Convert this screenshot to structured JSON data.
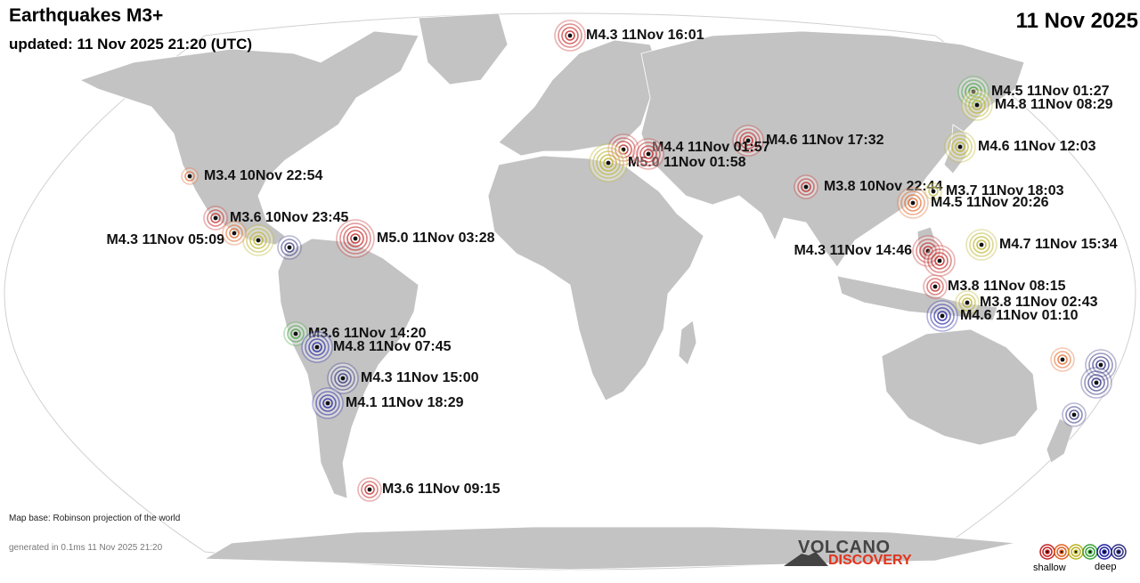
{
  "header": {
    "title": "Earthquakes M3+",
    "updated": "updated: 11 Nov 2025 21:20 (UTC)",
    "date": "11 Nov 2025"
  },
  "footer": {
    "map_base": "Map base: Robinson projection of the world",
    "generated": "generated in 0.1ms 11 Nov 2025 21:20"
  },
  "logo": {
    "top": "VOLCANO",
    "bottom": "DISCOVERY"
  },
  "legend": {
    "shallow": "shallow",
    "deep": "deep",
    "depth_colors": [
      "#c22020",
      "#e06020",
      "#b8b020",
      "#38a038",
      "#2020a0",
      "#303080"
    ]
  },
  "colors": {
    "ocean": "#ffffff",
    "land": "#c3c3c3",
    "border": "#ffffff"
  },
  "quakes": [
    {
      "label": "M4.3 11Nov 16:01",
      "color": "#c22020",
      "size": "large"
    },
    {
      "label": "M4.5 11Nov 01:27",
      "color": "#38a038",
      "size": "large"
    },
    {
      "label": "M4.8 11Nov 08:29",
      "color": "#b8b020",
      "size": "large"
    },
    {
      "label": "M4.6 11Nov 17:32",
      "color": "#c22020",
      "size": "large"
    },
    {
      "label": "M4.6 11Nov 12:03",
      "color": "#b8b020",
      "size": "large"
    },
    {
      "label": "M4.4 11Nov 01:57",
      "color": "#c22020",
      "size": "large"
    },
    {
      "label": "M5.0 11Nov 01:58",
      "color": "#b8b020",
      "size": "xlarge"
    },
    {
      "label": "M3.8 10Nov 22:44",
      "color": "#c22020",
      "size": "medium"
    },
    {
      "label": "M3.7 11Nov 18:03",
      "color": "#b8b020",
      "size": "small"
    },
    {
      "label": "M4.5 11Nov 20:26",
      "color": "#e06020",
      "size": "large"
    },
    {
      "label": "M3.4 10Nov 22:54",
      "color": "#e06020",
      "size": "small"
    },
    {
      "label": "M3.6 10Nov 23:45",
      "color": "#c22020",
      "size": "medium"
    },
    {
      "label": "M4.3 11Nov 05:09",
      "color": "#b8b020",
      "size": "large"
    },
    {
      "label": "M5.0 11Nov 03:28",
      "color": "#c22020",
      "size": "xlarge"
    },
    {
      "label": "M4.7 11Nov 15:34",
      "color": "#b8b020",
      "size": "large"
    },
    {
      "label": "M4.3 11Nov 14:46",
      "color": "#c22020",
      "size": "large"
    },
    {
      "label": "M3.8 11Nov 08:15",
      "color": "#c22020",
      "size": "medium"
    },
    {
      "label": "M3.8 11Nov 02:43",
      "color": "#b8b020",
      "size": "medium"
    },
    {
      "label": "M4.6 11Nov 01:10",
      "color": "#2020a0",
      "size": "large"
    },
    {
      "label": "M3.6 11Nov 14:20",
      "color": "#38a038",
      "size": "medium"
    },
    {
      "label": "M4.8 11Nov 07:45",
      "color": "#2020a0",
      "size": "large"
    },
    {
      "label": "M4.3 11Nov 15:00",
      "color": "#303080",
      "size": "large"
    },
    {
      "label": "M4.1 11Nov 18:29",
      "color": "#2020a0",
      "size": "large"
    },
    {
      "label": "M3.6 11Nov 09:15",
      "color": "#c22020",
      "size": "medium"
    },
    {
      "label": "",
      "color": "#303080",
      "size": "medium"
    },
    {
      "label": "",
      "color": "#c22020",
      "size": "large"
    },
    {
      "label": "",
      "color": "#e06020",
      "size": "medium"
    },
    {
      "label": "",
      "color": "#c22020",
      "size": "large"
    },
    {
      "label": "",
      "color": "#e06020",
      "size": "medium"
    },
    {
      "label": "",
      "color": "#303080",
      "size": "large"
    },
    {
      "label": "",
      "color": "#303080",
      "size": "large"
    },
    {
      "label": "",
      "color": "#303080",
      "size": "medium"
    }
  ]
}
